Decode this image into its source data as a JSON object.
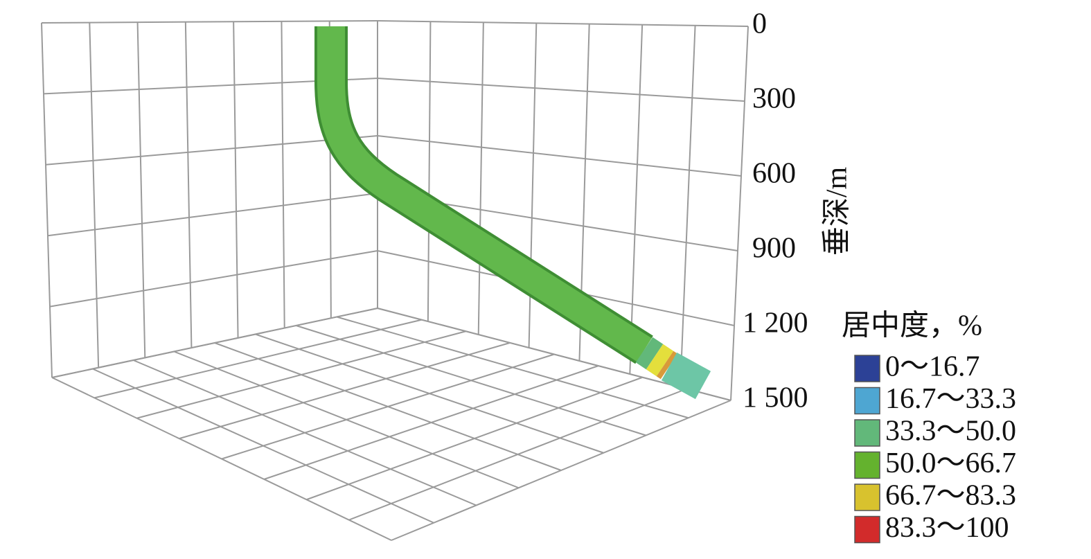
{
  "chart_data": {
    "type": "well-3d",
    "y_label": "垂深/m",
    "ylim": [
      0,
      1500
    ],
    "yticks": [
      0,
      300,
      600,
      900,
      {
        "value": 1200,
        "label": "1 200"
      },
      {
        "value": 1500,
        "label": "1 500"
      }
    ],
    "grid": true,
    "legend": {
      "title": "居中度，%",
      "items": [
        {
          "label": "0～16.7",
          "color": "#2c4196"
        },
        {
          "label": "16.7～33.3",
          "color": "#4ea6d2"
        },
        {
          "label": "33.3～50.0",
          "color": "#62b87a"
        },
        {
          "label": "50.0～66.7",
          "color": "#64b22e"
        },
        {
          "label": "66.7～83.3",
          "color": "#d8c22e"
        },
        {
          "label": "83.3～100",
          "color": "#d22b2b"
        }
      ]
    }
  }
}
